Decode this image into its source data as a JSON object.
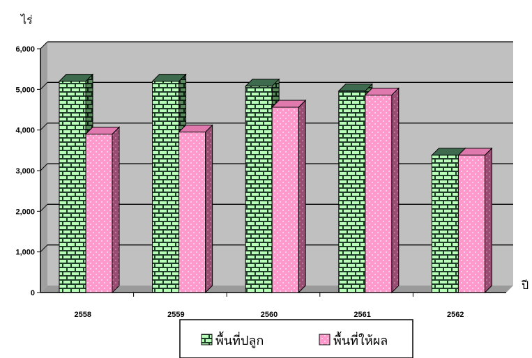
{
  "chart_data": {
    "type": "bar",
    "categories": [
      "2558",
      "2559",
      "2560",
      "2561",
      "2562"
    ],
    "series": [
      {
        "name": "พื้นที่ปลูก",
        "values": [
          5200,
          5200,
          5080,
          4960,
          3380
        ]
      },
      {
        "name": "พื้นที่ให้ผล",
        "values": [
          3900,
          3950,
          4560,
          4860,
          3380
        ]
      }
    ],
    "ylabel": "ไร่",
    "xlabel": "ปี",
    "ylim": [
      0,
      6000
    ],
    "yticks": [
      "0",
      "1,000",
      "2,000",
      "3,000",
      "4,000",
      "5,000",
      "6,000"
    ],
    "grid": true,
    "legend_position": "bottom",
    "style": "3d-clustered-column",
    "colors": {
      "plot_background": "#c0c0c0",
      "series1_fill": "#1f3b2a",
      "series1_pattern": "#b8ffb8",
      "series2_fill": "#ff99cc",
      "series2_pattern": "#ffffff",
      "gridline": "#000000"
    }
  }
}
